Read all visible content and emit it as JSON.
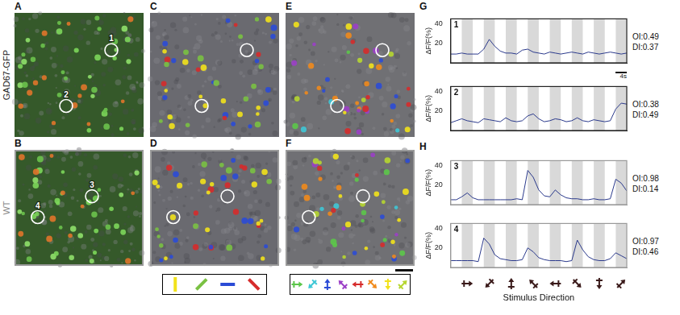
{
  "row_labels": [
    "GAD67-GFP",
    "WT"
  ],
  "columns": [
    {
      "letters": [
        "A",
        "B"
      ],
      "kind": "fluorescence"
    },
    {
      "letters": [
        "C",
        "D"
      ],
      "kind": "orientation_map"
    },
    {
      "letters": [
        "E",
        "F"
      ],
      "kind": "direction_map"
    }
  ],
  "circle_labels": [
    [
      "1",
      "2"
    ],
    [
      "3",
      "4"
    ]
  ],
  "orientation_key": [
    "#f2e21b",
    "#7ac143",
    "#2b4bd6",
    "#d62b2b"
  ],
  "direction_key": [
    "#5cc64a",
    "#3fc7d6",
    "#2b4bd6",
    "#9b3fc7",
    "#d62b2b",
    "#f08a1c",
    "#f2e21b",
    "#b6d630"
  ],
  "trace_letters": [
    "G",
    "H"
  ],
  "time_scale_bar": {
    "label": "4s",
    "value": 4
  },
  "x_label": "Stimulus Direction",
  "chart_data": [
    {
      "type": "line",
      "title": "1",
      "annotations": [
        "OI:0.49",
        "DI:0.37"
      ],
      "y_label": "ΔF/F(%)",
      "x": [
        0,
        2,
        4,
        6,
        8,
        10,
        12,
        14,
        16,
        18,
        20,
        22,
        24,
        26,
        28,
        30,
        32,
        34,
        36,
        38,
        40,
        42,
        44,
        46,
        48,
        50,
        52,
        54,
        56,
        58,
        60,
        62,
        64
      ],
      "values": [
        9,
        9,
        10,
        9,
        9,
        9,
        14,
        24,
        17,
        12,
        10,
        10,
        9,
        13,
        14,
        11,
        10,
        9,
        11,
        10,
        9,
        10,
        11,
        10,
        9,
        11,
        10,
        9,
        10,
        11,
        10,
        9,
        10
      ],
      "color": "#2b3a8c",
      "xlim": [
        0,
        64
      ],
      "ylim": [
        0,
        45
      ],
      "yticks": [
        20,
        40
      ],
      "grid": false,
      "tick_labels": "y",
      "stimulus_periods": [
        [
          4,
          8
        ],
        [
          12,
          16
        ],
        [
          20,
          24
        ],
        [
          28,
          32
        ],
        [
          36,
          40
        ],
        [
          44,
          48
        ],
        [
          52,
          56
        ],
        [
          60,
          64
        ]
      ]
    },
    {
      "type": "line",
      "title": "2",
      "annotations": [
        "OI:0.38",
        "DI:0.49"
      ],
      "y_label": "ΔF/F(%)",
      "x": [
        0,
        2,
        4,
        6,
        8,
        10,
        12,
        14,
        16,
        18,
        20,
        22,
        24,
        26,
        28,
        30,
        32,
        34,
        36,
        38,
        40,
        42,
        44,
        46,
        48,
        50,
        52,
        54,
        56,
        58,
        60,
        62,
        64
      ],
      "values": [
        8,
        10,
        12,
        10,
        9,
        8,
        12,
        11,
        10,
        9,
        13,
        10,
        9,
        10,
        15,
        17,
        12,
        9,
        10,
        12,
        11,
        9,
        10,
        13,
        10,
        9,
        11,
        10,
        9,
        10,
        22,
        28,
        27
      ],
      "color": "#2b3a8c",
      "xlim": [
        0,
        64
      ],
      "ylim": [
        0,
        45
      ],
      "yticks": [
        20,
        40
      ],
      "grid": false,
      "tick_labels": "y",
      "stimulus_periods": [
        [
          4,
          8
        ],
        [
          12,
          16
        ],
        [
          20,
          24
        ],
        [
          28,
          32
        ],
        [
          36,
          40
        ],
        [
          44,
          48
        ],
        [
          52,
          56
        ],
        [
          60,
          64
        ]
      ]
    },
    {
      "type": "line",
      "title": "3",
      "annotations": [
        "OI:0.98",
        "DI:0.14"
      ],
      "y_label": "ΔF/F(%)",
      "x": [
        0,
        2,
        4,
        6,
        8,
        10,
        12,
        14,
        16,
        18,
        20,
        22,
        24,
        26,
        28,
        30,
        32,
        34,
        36,
        38,
        40,
        42,
        44,
        46,
        48,
        50,
        52,
        54,
        56,
        58,
        60,
        62,
        64
      ],
      "values": [
        5,
        5,
        8,
        12,
        7,
        5,
        5,
        5,
        5,
        5,
        5,
        5,
        6,
        5,
        35,
        28,
        15,
        9,
        8,
        15,
        10,
        7,
        6,
        6,
        5,
        5,
        6,
        5,
        5,
        6,
        26,
        22,
        14
      ],
      "color": "#2b3a8c",
      "xlim": [
        0,
        64
      ],
      "ylim": [
        0,
        45
      ],
      "yticks": [
        20,
        40
      ],
      "grid": false,
      "tick_labels": "y",
      "stimulus_periods": [
        [
          4,
          8
        ],
        [
          12,
          16
        ],
        [
          20,
          24
        ],
        [
          28,
          32
        ],
        [
          36,
          40
        ],
        [
          44,
          48
        ],
        [
          52,
          56
        ],
        [
          60,
          64
        ]
      ]
    },
    {
      "type": "line",
      "title": "4",
      "annotations": [
        "OI:0.97",
        "DI:0.46"
      ],
      "y_label": "ΔF/F(%)",
      "x": [
        0,
        2,
        4,
        6,
        8,
        10,
        12,
        14,
        16,
        18,
        20,
        22,
        24,
        26,
        28,
        30,
        32,
        34,
        36,
        38,
        40,
        42,
        44,
        46,
        48,
        50,
        52,
        54,
        56,
        58,
        60,
        62,
        64
      ],
      "values": [
        7,
        7,
        7,
        7,
        7,
        6,
        30,
        24,
        13,
        9,
        8,
        7,
        7,
        8,
        20,
        16,
        10,
        8,
        7,
        7,
        7,
        6,
        7,
        28,
        18,
        11,
        8,
        7,
        7,
        9,
        15,
        12,
        9
      ],
      "color": "#2b3a8c",
      "xlim": [
        0,
        64
      ],
      "ylim": [
        0,
        45
      ],
      "yticks": [
        20,
        40
      ],
      "grid": false,
      "tick_labels": "y",
      "stimulus_periods": [
        [
          4,
          8
        ],
        [
          12,
          16
        ],
        [
          20,
          24
        ],
        [
          28,
          32
        ],
        [
          36,
          40
        ],
        [
          44,
          48
        ],
        [
          52,
          56
        ],
        [
          60,
          64
        ]
      ]
    }
  ]
}
